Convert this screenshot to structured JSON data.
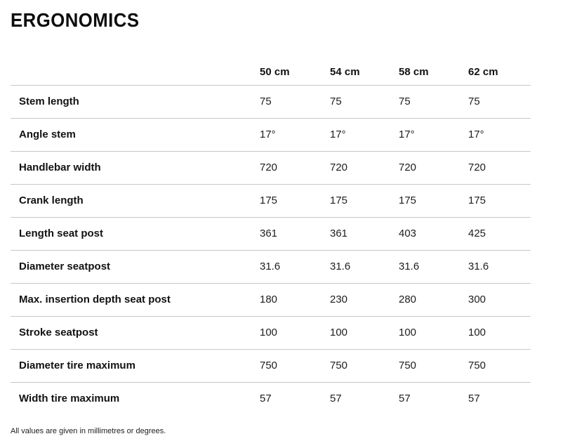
{
  "page": {
    "title": "ERGONOMICS",
    "footnote": "All values are given in millimetres or degrees."
  },
  "table": {
    "columns": [
      "50 cm",
      "54 cm",
      "58 cm",
      "62 cm"
    ],
    "rows": [
      {
        "label": "Stem length",
        "values": [
          "75",
          "75",
          "75",
          "75"
        ]
      },
      {
        "label": "Angle stem",
        "values": [
          "17°",
          "17°",
          "17°",
          "17°"
        ]
      },
      {
        "label": "Handlebar width",
        "values": [
          "720",
          "720",
          "720",
          "720"
        ]
      },
      {
        "label": "Crank length",
        "values": [
          "175",
          "175",
          "175",
          "175"
        ]
      },
      {
        "label": "Length seat post",
        "values": [
          "361",
          "361",
          "403",
          "425"
        ]
      },
      {
        "label": "Diameter seatpost",
        "values": [
          "31.6",
          "31.6",
          "31.6",
          "31.6"
        ]
      },
      {
        "label": "Max. insertion depth seat post",
        "values": [
          "180",
          "230",
          "280",
          "300"
        ]
      },
      {
        "label": "Stroke seatpost",
        "values": [
          "100",
          "100",
          "100",
          "100"
        ]
      },
      {
        "label": "Diameter tire maximum",
        "values": [
          "750",
          "750",
          "750",
          "750"
        ]
      },
      {
        "label": "Width tire maximum",
        "values": [
          "57",
          "57",
          "57",
          "57"
        ]
      }
    ]
  },
  "colors": {
    "text": "#1d1d1d",
    "heading": "#0d0d0d",
    "divider": "#c7c7c7"
  }
}
